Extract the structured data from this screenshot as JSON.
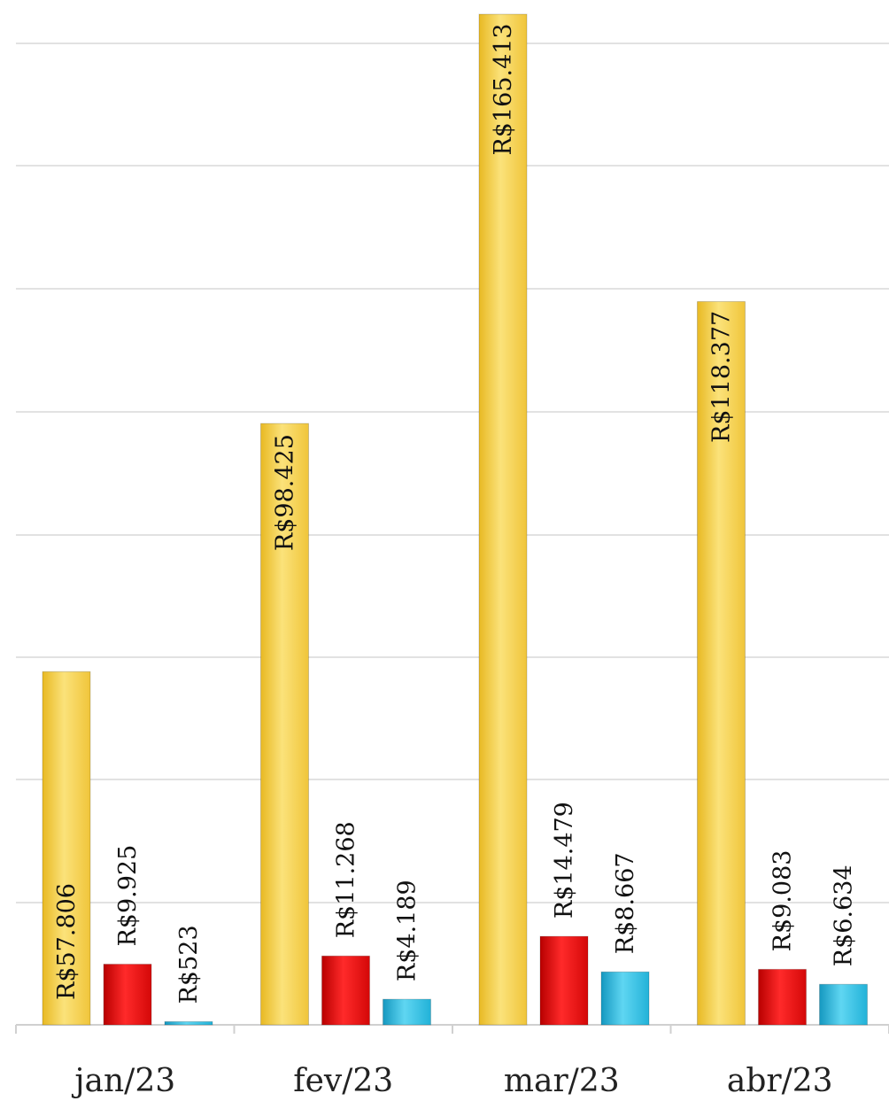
{
  "chart_data": {
    "type": "bar",
    "title": "",
    "xlabel": "",
    "ylabel": "",
    "categories": [
      "jan/23",
      "fev/23",
      "mar/23",
      "abr/23"
    ],
    "series": [
      {
        "color": "#f4cf45",
        "values": [
          57806,
          98425,
          165413,
          118377
        ],
        "labels": [
          "R$57.806",
          "R$98.425",
          "R$165.413",
          "R$118.377"
        ]
      },
      {
        "color": "#e01010",
        "values": [
          9925,
          11268,
          14479,
          9083
        ],
        "labels": [
          "R$9.925",
          "R$11.268",
          "R$14.479",
          "R$9.083"
        ]
      },
      {
        "color": "#2ab8dc",
        "values": [
          523,
          4189,
          8667,
          6634
        ],
        "labels": [
          "R$523",
          "R$4.189",
          "R$8.667",
          "R$6.634"
        ]
      }
    ],
    "ylim": [
      0,
      166000
    ],
    "grid": true,
    "legend": "none"
  }
}
